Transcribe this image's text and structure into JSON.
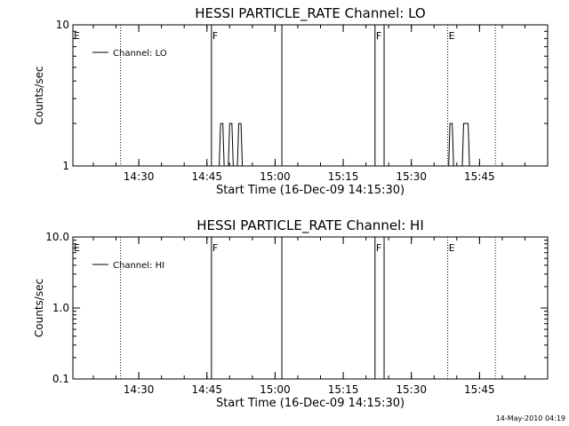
{
  "footer": {
    "timestamp": "14-May-2010 04:19"
  },
  "chart_data": [
    {
      "type": "line",
      "title": "HESSI PARTICLE_RATE Channel: LO",
      "xlabel": "Start Time (16-Dec-09 14:15:30)",
      "ylabel": "Counts/sec",
      "yscale": "log",
      "ylim": [
        1,
        10
      ],
      "xlim": [
        "14:15:30",
        "16:00:00"
      ],
      "x_ticks": [
        "14:30",
        "14:45",
        "15:00",
        "15:15",
        "15:30",
        "15:45"
      ],
      "y_ticks": [
        "1",
        "10"
      ],
      "legend": {
        "label": "Channel: LO",
        "position": "top-left"
      },
      "markers": [
        {
          "time": "14:15:30",
          "label": "E",
          "style": "solid"
        },
        {
          "time": "14:26:00",
          "label": "",
          "style": "dotted"
        },
        {
          "time": "14:46:00",
          "label": "F",
          "style": "solid"
        },
        {
          "time": "15:01:30",
          "label": "",
          "style": "solid"
        },
        {
          "time": "15:22:00",
          "label": "F",
          "style": "solid"
        },
        {
          "time": "15:24:00",
          "label": "",
          "style": "solid"
        },
        {
          "time": "15:38:00",
          "label": "E",
          "style": "dotted"
        },
        {
          "time": "15:48:30",
          "label": "",
          "style": "dotted"
        }
      ],
      "series": [
        {
          "values": [
            {
              "start": "14:48:00",
              "end": "14:48:30",
              "value": 2
            },
            {
              "start": "14:50:00",
              "end": "14:50:30",
              "value": 2
            },
            {
              "start": "14:52:00",
              "end": "14:52:30",
              "value": 2
            },
            {
              "start": "15:38:30",
              "end": "15:39:00",
              "value": 2
            },
            {
              "start": "15:41:30",
              "end": "15:42:30",
              "value": 2
            }
          ]
        }
      ]
    },
    {
      "type": "line",
      "title": "HESSI PARTICLE_RATE Channel: HI",
      "xlabel": "Start Time (16-Dec-09 14:15:30)",
      "ylabel": "Counts/sec",
      "yscale": "log",
      "ylim": [
        0.1,
        10
      ],
      "xlim": [
        "14:15:30",
        "16:00:00"
      ],
      "x_ticks": [
        "14:30",
        "14:45",
        "15:00",
        "15:15",
        "15:30",
        "15:45"
      ],
      "y_ticks": [
        "0.1",
        "1.0",
        "10.0"
      ],
      "legend": {
        "label": "Channel: HI",
        "position": "top-left"
      },
      "markers": [
        {
          "time": "14:15:30",
          "label": "E",
          "style": "solid"
        },
        {
          "time": "14:26:00",
          "label": "",
          "style": "dotted"
        },
        {
          "time": "14:46:00",
          "label": "F",
          "style": "solid"
        },
        {
          "time": "15:01:30",
          "label": "",
          "style": "solid"
        },
        {
          "time": "15:22:00",
          "label": "F",
          "style": "solid"
        },
        {
          "time": "15:24:00",
          "label": "",
          "style": "solid"
        },
        {
          "time": "15:38:00",
          "label": "E",
          "style": "dotted"
        },
        {
          "time": "15:48:30",
          "label": "",
          "style": "dotted"
        }
      ],
      "series": [
        {
          "values": []
        }
      ]
    }
  ]
}
